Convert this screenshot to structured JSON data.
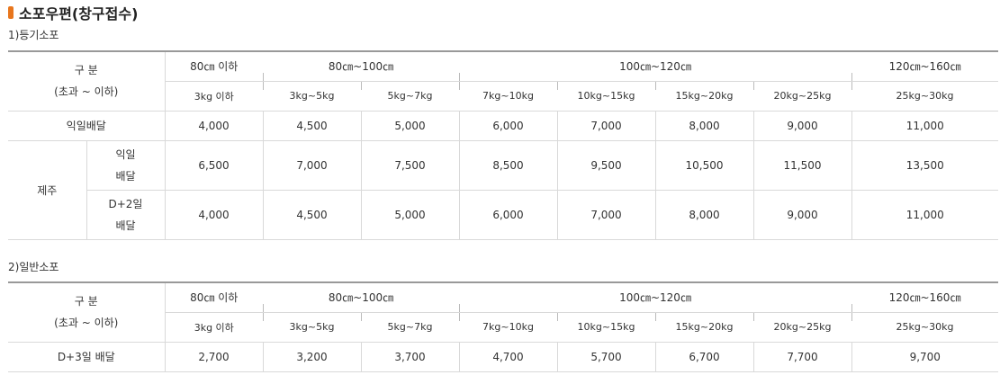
{
  "page_title": "소포우편(창구접수)",
  "section1": {
    "title": "1)등기소포",
    "header_label_line1": "구 분",
    "header_label_line2": "(초과 ~ 이하)",
    "size_groups": [
      "80㎝ 이하",
      "80㎝~100㎝",
      "100㎝~120㎝",
      "120㎝~160㎝"
    ],
    "weights": [
      "3kg 이하",
      "3kg~5kg",
      "5kg~7kg",
      "7kg~10kg",
      "10kg~15kg",
      "15kg~20kg",
      "20kg~25kg",
      "25kg~30kg"
    ],
    "row_next_day": {
      "label": "익일배달",
      "values": [
        "4,000",
        "4,500",
        "5,000",
        "6,000",
        "7,000",
        "8,000",
        "9,000",
        "11,000"
      ]
    },
    "jeju_label": "제주",
    "jeju_next_day": {
      "label_line1": "익일",
      "label_line2": "배달",
      "values": [
        "6,500",
        "7,000",
        "7,500",
        "8,500",
        "9,500",
        "10,500",
        "11,500",
        "13,500"
      ]
    },
    "jeju_d2": {
      "label_line1": "D+2일",
      "label_line2": "배달",
      "values": [
        "4,000",
        "4,500",
        "5,000",
        "6,000",
        "7,000",
        "8,000",
        "9,000",
        "11,000"
      ]
    }
  },
  "section2": {
    "title": "2)일반소포",
    "header_label_line1": "구 분",
    "header_label_line2": "(초과 ~ 이하)",
    "size_groups": [
      "80㎝ 이하",
      "80㎝~100㎝",
      "100㎝~120㎝",
      "120㎝~160㎝"
    ],
    "weights": [
      "3kg 이하",
      "3kg~5kg",
      "5kg~7kg",
      "7kg~10kg",
      "10kg~15kg",
      "15kg~20kg",
      "20kg~25kg",
      "25kg~30kg"
    ],
    "row_d3": {
      "label": "D+3일 배달",
      "values": [
        "2,700",
        "3,200",
        "3,700",
        "4,700",
        "5,700",
        "6,700",
        "7,700",
        "9,700"
      ]
    }
  },
  "colors": {
    "accent": "#e8761d",
    "border": "#d9d9d9",
    "top_border": "#999999"
  }
}
